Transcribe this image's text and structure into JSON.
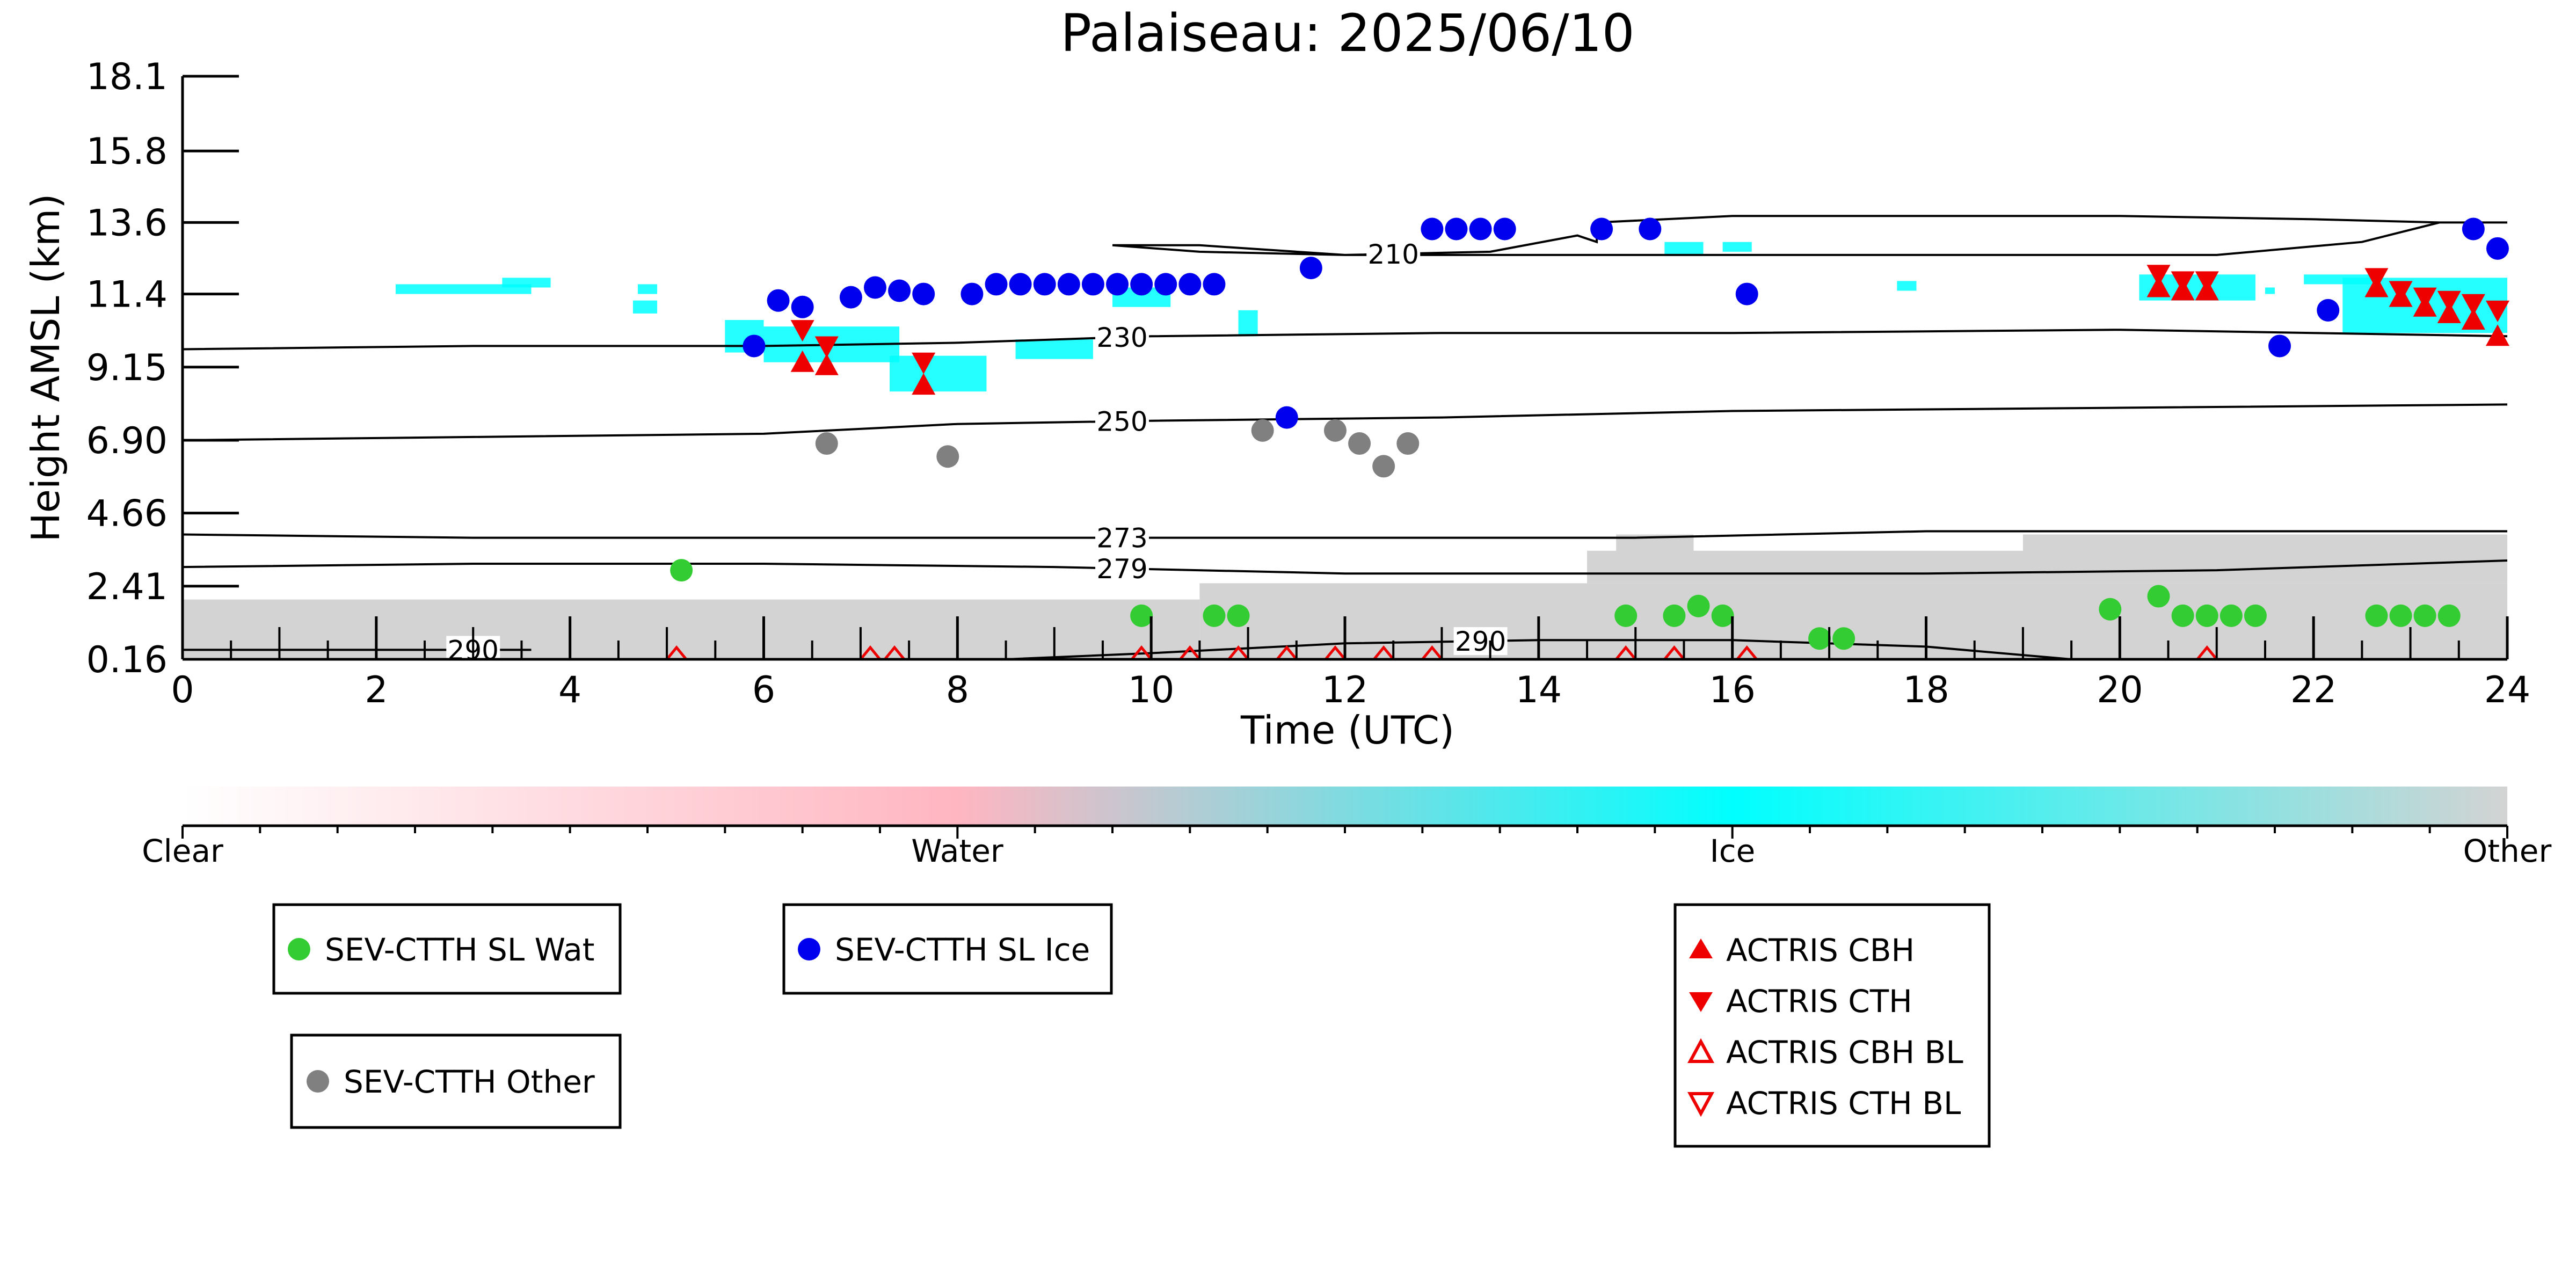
{
  "chart_data": {
    "type": "scatter",
    "title": "Palaiseau: 2025/06/10",
    "xlabel": "Time (UTC)",
    "ylabel": "Height AMSL (km)",
    "xlim": [
      0,
      24
    ],
    "ylim": [
      0.16,
      18.1
    ],
    "x_ticks": [
      "0",
      "2",
      "4",
      "6",
      "8",
      "10",
      "12",
      "14",
      "16",
      "18",
      "20",
      "22",
      "24"
    ],
    "y_ticks": [
      "0.16",
      "2.41",
      "4.66",
      "6.90",
      "9.15",
      "11.4",
      "13.6",
      "15.8",
      "18.1"
    ],
    "y_tick_values": [
      0.16,
      2.41,
      4.66,
      6.9,
      9.15,
      11.4,
      13.6,
      15.8,
      18.1
    ],
    "colorbar": {
      "labels": [
        "Clear",
        "Water",
        "Ice",
        "Other"
      ],
      "colors": [
        "#ffffff",
        "#ffb6c1",
        "#00ffff",
        "#d3d3d3"
      ]
    },
    "colors": {
      "wat": "#33cc33",
      "ice": "#0000ee",
      "other": "#808080",
      "actris": "#ee0000",
      "ice_mask": "#00ffff",
      "other_mask": "#d3d3d3"
    },
    "contours": [
      {
        "label": "210",
        "label_x": 12.5,
        "points": [
          [
            9.6,
            12.9
          ],
          [
            10.5,
            12.7
          ],
          [
            12,
            12.6
          ],
          [
            13.5,
            12.7
          ],
          [
            14.4,
            13.2
          ],
          [
            14.6,
            13.0
          ],
          [
            14.6,
            13.6
          ],
          [
            16,
            13.8
          ],
          [
            20,
            13.8
          ],
          [
            22,
            13.7
          ],
          [
            23.3,
            13.6
          ],
          [
            24,
            13.6
          ],
          [
            23.3,
            13.6
          ],
          [
            22.5,
            13.0
          ],
          [
            21,
            12.6
          ],
          [
            19,
            12.6
          ],
          [
            17,
            12.6
          ],
          [
            15,
            12.6
          ],
          [
            13.5,
            12.6
          ],
          [
            12,
            12.6
          ],
          [
            10.5,
            12.9
          ],
          [
            9.6,
            12.9
          ]
        ]
      },
      {
        "label": "230",
        "label_x": 9.7,
        "points": [
          [
            0,
            9.7
          ],
          [
            3,
            9.8
          ],
          [
            6,
            9.8
          ],
          [
            8,
            9.9
          ],
          [
            10,
            10.1
          ],
          [
            13,
            10.2
          ],
          [
            16,
            10.2
          ],
          [
            20,
            10.3
          ],
          [
            22,
            10.2
          ],
          [
            24,
            10.1
          ]
        ]
      },
      {
        "label": "250",
        "label_x": 9.7,
        "points": [
          [
            0,
            6.9
          ],
          [
            3,
            7.0
          ],
          [
            6,
            7.1
          ],
          [
            8,
            7.4
          ],
          [
            10,
            7.5
          ],
          [
            13,
            7.6
          ],
          [
            16,
            7.8
          ],
          [
            20,
            7.9
          ],
          [
            24,
            8.0
          ]
        ]
      },
      {
        "label": "273",
        "label_x": 9.7,
        "points": [
          [
            0,
            4.0
          ],
          [
            3,
            3.9
          ],
          [
            6,
            3.9
          ],
          [
            9,
            3.9
          ],
          [
            12,
            3.9
          ],
          [
            15,
            3.9
          ],
          [
            18,
            4.1
          ],
          [
            21,
            4.1
          ],
          [
            24,
            4.1
          ]
        ]
      },
      {
        "label": "279",
        "label_x": 9.7,
        "points": [
          [
            0,
            3.0
          ],
          [
            3,
            3.1
          ],
          [
            6,
            3.1
          ],
          [
            9,
            3.0
          ],
          [
            12,
            2.8
          ],
          [
            15,
            2.8
          ],
          [
            18,
            2.8
          ],
          [
            21,
            2.9
          ],
          [
            24,
            3.2
          ]
        ]
      },
      {
        "label": "290",
        "label_x": 3.0,
        "points": [
          [
            0,
            0.45
          ],
          [
            2,
            0.45
          ],
          [
            3.6,
            0.45
          ]
        ]
      },
      {
        "label": "290",
        "label_x": 13.4,
        "points": [
          [
            8.5,
            0.16
          ],
          [
            10,
            0.35
          ],
          [
            12,
            0.65
          ],
          [
            14,
            0.75
          ],
          [
            16,
            0.75
          ],
          [
            18,
            0.55
          ],
          [
            19.5,
            0.16
          ]
        ]
      }
    ],
    "series": [
      {
        "name": "SEV-CTTH SL Wat",
        "marker": "circle",
        "color": "#33cc33",
        "x": [
          5.15,
          9.9,
          10.65,
          10.9,
          14.9,
          15.4,
          15.65,
          15.9,
          16.9,
          17.15,
          19.9,
          20.4,
          20.65,
          20.9,
          21.15,
          21.4,
          22.65,
          22.9,
          23.15,
          23.4
        ],
        "y": [
          2.9,
          1.5,
          1.5,
          1.5,
          1.5,
          1.5,
          1.8,
          1.5,
          0.8,
          0.8,
          1.7,
          2.1,
          1.5,
          1.5,
          1.5,
          1.5,
          1.5,
          1.5,
          1.5,
          1.5
        ]
      },
      {
        "name": "SEV-CTTH SL Ice",
        "marker": "circle",
        "color": "#0000ee",
        "x": [
          5.9,
          6.15,
          6.4,
          6.9,
          7.15,
          7.4,
          7.65,
          8.15,
          8.4,
          8.65,
          8.9,
          9.15,
          9.4,
          9.65,
          9.9,
          10.15,
          10.4,
          10.65,
          11.4,
          11.65,
          12.9,
          13.15,
          13.4,
          13.65,
          14.65,
          15.15,
          16.15,
          21.65,
          22.15,
          23.65,
          23.9
        ],
        "y": [
          9.8,
          11.2,
          11.0,
          11.3,
          11.6,
          11.5,
          11.4,
          11.4,
          11.7,
          11.7,
          11.7,
          11.7,
          11.7,
          11.7,
          11.7,
          11.7,
          11.7,
          11.7,
          7.6,
          12.2,
          13.4,
          13.4,
          13.4,
          13.4,
          13.4,
          13.4,
          11.4,
          9.8,
          10.9,
          13.4,
          12.8
        ]
      },
      {
        "name": "SEV-CTTH Other",
        "marker": "circle",
        "color": "#808080",
        "x": [
          6.65,
          7.9,
          11.15,
          11.9,
          12.15,
          12.4,
          12.65
        ],
        "y": [
          6.8,
          6.4,
          7.2,
          7.2,
          6.8,
          6.1,
          6.8
        ]
      },
      {
        "name": "ACTRIS CBH",
        "marker": "triangle-up",
        "color": "#ee0000",
        "x": [
          6.4,
          6.65,
          7.65,
          20.4,
          20.65,
          20.9,
          22.65,
          22.9,
          23.15,
          23.4,
          23.65,
          23.9
        ],
        "y": [
          9.3,
          9.2,
          8.6,
          11.6,
          11.5,
          11.5,
          11.6,
          11.3,
          11.0,
          10.8,
          10.6,
          10.1
        ]
      },
      {
        "name": "ACTRIS CTH",
        "marker": "triangle-down",
        "color": "#ee0000",
        "x": [
          6.4,
          6.65,
          7.65,
          20.4,
          20.65,
          20.9,
          22.65,
          22.9,
          23.15,
          23.4,
          23.65,
          23.9
        ],
        "y": [
          10.3,
          9.8,
          9.3,
          12.0,
          11.8,
          11.8,
          11.9,
          11.5,
          11.3,
          11.2,
          11.1,
          10.9
        ]
      },
      {
        "name": "ACTRIS CBH BL",
        "marker": "triangle-up-open",
        "color": "#ee0000",
        "x": [
          5.1,
          7.1,
          7.35,
          9.9,
          10.4,
          10.9,
          11.4,
          11.9,
          12.4,
          12.9,
          14.9,
          15.4,
          16.15,
          20.9
        ],
        "y": [
          0.16,
          0.16,
          0.16,
          0.16,
          0.16,
          0.16,
          0.16,
          0.16,
          0.16,
          0.16,
          0.16,
          0.16,
          0.16,
          0.16
        ]
      },
      {
        "name": "ACTRIS CTH BL",
        "marker": "triangle-down-open",
        "color": "#ee0000",
        "x": [],
        "y": []
      }
    ],
    "ice_mask_patches": [
      [
        2.2,
        11.7,
        3.6,
        11.4
      ],
      [
        3.3,
        11.9,
        3.8,
        11.6
      ],
      [
        4.7,
        11.7,
        4.9,
        11.4
      ],
      [
        4.65,
        11.2,
        4.9,
        10.8
      ],
      [
        5.6,
        10.6,
        6.0,
        9.6
      ],
      [
        6.0,
        10.4,
        7.4,
        9.3
      ],
      [
        7.3,
        9.5,
        8.3,
        8.4
      ],
      [
        8.6,
        10.0,
        9.4,
        9.4
      ],
      [
        9.6,
        11.6,
        10.2,
        11.0
      ],
      [
        10.9,
        10.9,
        11.1,
        10.1
      ],
      [
        15.3,
        13.0,
        15.7,
        12.6
      ],
      [
        15.9,
        13.0,
        16.2,
        12.7
      ],
      [
        17.7,
        11.8,
        17.9,
        11.5
      ],
      [
        20.2,
        12.0,
        21.4,
        11.2
      ],
      [
        21.5,
        11.6,
        21.6,
        11.4
      ],
      [
        21.9,
        12.0,
        22.6,
        11.7
      ],
      [
        22.3,
        11.9,
        24,
        10.2
      ]
    ],
    "other_mask_patches": [
      [
        0,
        2.0,
        10.5,
        0.16
      ],
      [
        10.5,
        2.5,
        24,
        0.16
      ],
      [
        14.5,
        3.5,
        24,
        2.5
      ],
      [
        19.0,
        4.0,
        24,
        3.4
      ],
      [
        14.8,
        4.0,
        15.6,
        3.2
      ]
    ],
    "legend_boxes": [
      {
        "entries": [
          "SEV-CTTH SL Wat"
        ]
      },
      {
        "entries": [
          "SEV-CTTH SL Ice"
        ]
      },
      {
        "entries": [
          "SEV-CTTH Other"
        ]
      },
      {
        "entries": [
          "ACTRIS CBH",
          "ACTRIS CTH",
          "ACTRIS CBH BL",
          "ACTRIS CTH BL"
        ]
      }
    ]
  }
}
